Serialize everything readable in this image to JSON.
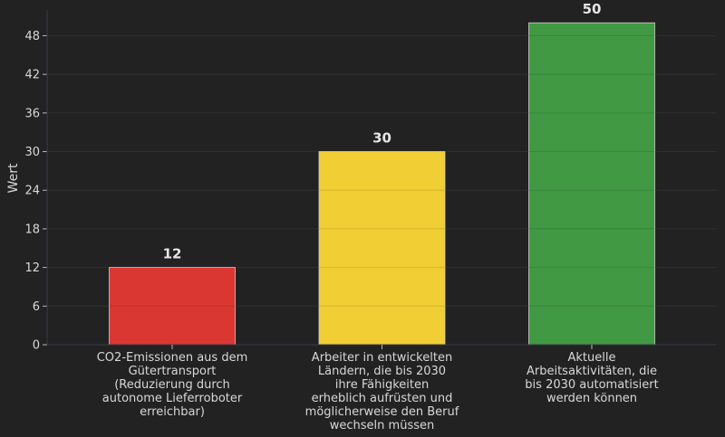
{
  "chart_data": {
    "type": "bar",
    "title": "",
    "xlabel": "",
    "ylabel": "Wert",
    "ylim": [
      0,
      52
    ],
    "yticks": [
      0,
      6,
      12,
      18,
      24,
      30,
      36,
      42,
      48
    ],
    "grid": true,
    "legend": "none",
    "categories": [
      [
        "CO2-Emissionen aus dem",
        "Gütertransport",
        "(Reduzierung durch",
        "autonome Lieferroboter",
        "erreichbar)"
      ],
      [
        "Arbeiter in entwickelten",
        "Ländern, die bis 2030",
        "ihre Fähigkeiten",
        "erheblich aufrüsten und",
        "möglicherweise den Beruf",
        "wechseln müssen"
      ],
      [
        "Aktuelle",
        "Arbeitsaktivitäten, die",
        "bis 2030 automatisiert",
        "werden können"
      ]
    ],
    "values": [
      12,
      30,
      50
    ],
    "data_labels": [
      "12",
      "30",
      "50"
    ],
    "colors": [
      "#e53935",
      "#fdd835",
      "#43a047"
    ]
  }
}
